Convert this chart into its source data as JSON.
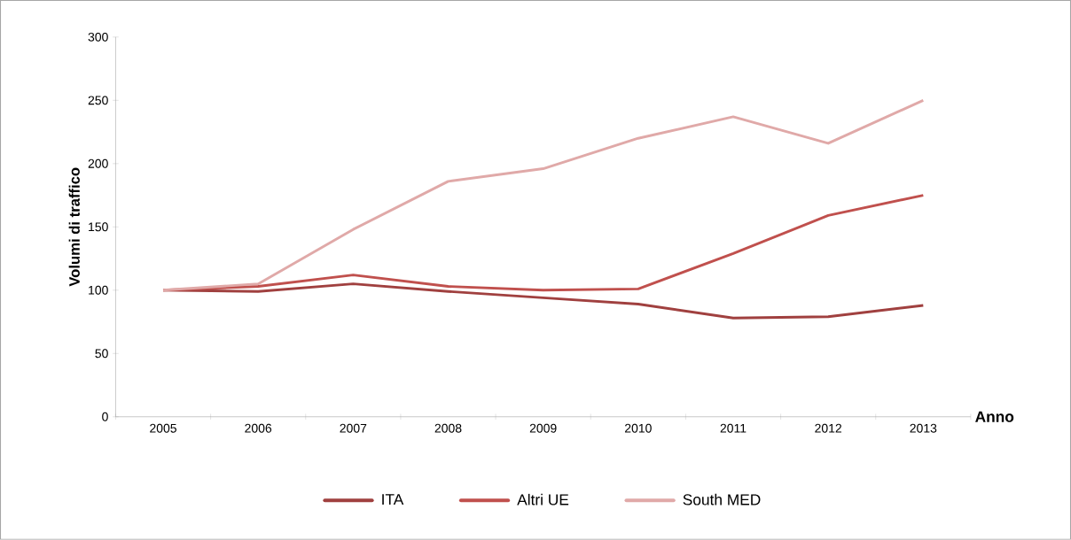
{
  "chart_data": {
    "type": "line",
    "ylabel": "Volumi di traffico",
    "xlabel": "Anno",
    "categories": [
      "2005",
      "2006",
      "2007",
      "2008",
      "2009",
      "2010",
      "2011",
      "2012",
      "2013"
    ],
    "series": [
      {
        "name": "ITA",
        "color": "#a0403f",
        "values": [
          100,
          99,
          105,
          99,
          94,
          89,
          78,
          79,
          88
        ]
      },
      {
        "name": "Altri UE",
        "color": "#c0504d",
        "values": [
          100,
          103,
          112,
          103,
          100,
          101,
          129,
          159,
          175
        ]
      },
      {
        "name": "South MED",
        "color": "#e0a9a8",
        "values": [
          100,
          105,
          148,
          186,
          196,
          220,
          237,
          216,
          250
        ]
      }
    ],
    "ylim": [
      0,
      300
    ],
    "yticks": [
      0,
      50,
      100,
      150,
      200,
      250,
      300
    ],
    "legend": "bottom"
  }
}
